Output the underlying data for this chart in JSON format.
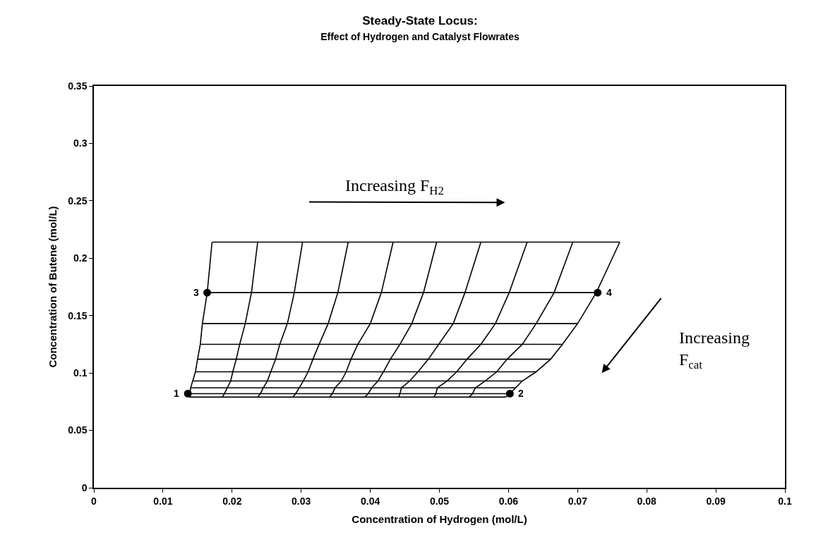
{
  "chart_data": {
    "type": "line",
    "title": "Steady-State Locus:",
    "subtitle": "Effect of Hydrogen and Catalyst Flowrates",
    "xlabel": "Concentration of Hydrogen (mol/L)",
    "ylabel": "Concentration of Butene (mol/L)",
    "xlim": [
      0,
      0.1
    ],
    "xticks": [
      0,
      0.01,
      0.02,
      0.03,
      0.04,
      0.05,
      0.06,
      0.07,
      0.08,
      0.09,
      0.1
    ],
    "ylim": [
      0,
      0.35
    ],
    "yticks": [
      0,
      0.05,
      0.1,
      0.15,
      0.2,
      0.25,
      0.3,
      0.35
    ],
    "grid": false,
    "series": [
      {
        "color": "#000000",
        "x": [
          0.0171,
          0.0237,
          0.0302,
          0.0368,
          0.0433,
          0.0496,
          0.056,
          0.0627,
          0.0693,
          0.0761
        ],
        "values": [
          0.214,
          0.214,
          0.214,
          0.214,
          0.214,
          0.214,
          0.214,
          0.214,
          0.214,
          0.214
        ]
      },
      {
        "color": "#000000",
        "x": [
          0.0164,
          0.0228,
          0.029,
          0.0353,
          0.0416,
          0.0477,
          0.0537,
          0.0601,
          0.0666,
          0.0727
        ],
        "values": [
          0.17,
          0.17,
          0.17,
          0.17,
          0.17,
          0.17,
          0.17,
          0.17,
          0.17,
          0.17
        ]
      },
      {
        "color": "#000000",
        "x": [
          0.0157,
          0.0219,
          0.028,
          0.0339,
          0.04,
          0.046,
          0.052,
          0.0581,
          0.064,
          0.07
        ],
        "values": [
          0.143,
          0.143,
          0.143,
          0.143,
          0.143,
          0.143,
          0.143,
          0.143,
          0.143,
          0.143
        ]
      },
      {
        "color": "#000000",
        "x": [
          0.0154,
          0.0211,
          0.0269,
          0.0326,
          0.0382,
          0.0443,
          0.0499,
          0.056,
          0.062,
          0.0678
        ],
        "values": [
          0.125,
          0.125,
          0.125,
          0.125,
          0.125,
          0.125,
          0.125,
          0.125,
          0.125,
          0.125
        ]
      },
      {
        "color": "#000000",
        "x": [
          0.015,
          0.0206,
          0.0263,
          0.0317,
          0.0372,
          0.0429,
          0.0484,
          0.054,
          0.0598,
          0.0661
        ],
        "values": [
          0.112,
          0.112,
          0.112,
          0.112,
          0.112,
          0.112,
          0.112,
          0.112,
          0.112,
          0.112
        ]
      },
      {
        "color": "#000000",
        "x": [
          0.0147,
          0.0201,
          0.0256,
          0.031,
          0.0365,
          0.0419,
          0.0469,
          0.0525,
          0.0583,
          0.064
        ],
        "values": [
          0.101,
          0.101,
          0.101,
          0.101,
          0.101,
          0.101,
          0.101,
          0.101,
          0.101,
          0.101
        ]
      },
      {
        "color": "#000000",
        "x": [
          0.0143,
          0.0198,
          0.0251,
          0.0303,
          0.0358,
          0.0411,
          0.0457,
          0.0511,
          0.0566,
          0.062
        ],
        "values": [
          0.093,
          0.093,
          0.093,
          0.093,
          0.093,
          0.093,
          0.093,
          0.093,
          0.093,
          0.093
        ]
      },
      {
        "color": "#000000",
        "x": [
          0.014,
          0.0193,
          0.0245,
          0.0297,
          0.0349,
          0.0402,
          0.0445,
          0.0497,
          0.0552,
          0.061
        ],
        "values": [
          0.087,
          0.087,
          0.087,
          0.087,
          0.087,
          0.087,
          0.087,
          0.087,
          0.087,
          0.087
        ]
      },
      {
        "color": "#000000",
        "x": [
          0.0139,
          0.0189,
          0.0241,
          0.0292,
          0.0345,
          0.0397,
          0.0443,
          0.0495,
          0.0548,
          0.0602
        ],
        "values": [
          0.082,
          0.082,
          0.082,
          0.082,
          0.082,
          0.082,
          0.082,
          0.082,
          0.082,
          0.082
        ]
      },
      {
        "color": "#000000",
        "x": [
          0.0138,
          0.0186,
          0.0237,
          0.0288,
          0.0341,
          0.0392,
          0.0441,
          0.0492,
          0.0543,
          0.0596
        ],
        "values": [
          0.079,
          0.079,
          0.079,
          0.079,
          0.079,
          0.079,
          0.079,
          0.079,
          0.079,
          0.079
        ]
      },
      {
        "color": "#000000",
        "x": [
          0.0171,
          0.0164,
          0.0157,
          0.0154,
          0.015,
          0.0147,
          0.0143,
          0.014,
          0.0139,
          0.0138
        ],
        "values": [
          0.214,
          0.17,
          0.143,
          0.125,
          0.112,
          0.101,
          0.093,
          0.087,
          0.082,
          0.079
        ]
      },
      {
        "color": "#000000",
        "x": [
          0.0237,
          0.0228,
          0.0219,
          0.0211,
          0.0206,
          0.0201,
          0.0198,
          0.0193,
          0.0189,
          0.0186
        ],
        "values": [
          0.214,
          0.17,
          0.143,
          0.125,
          0.112,
          0.101,
          0.093,
          0.087,
          0.082,
          0.079
        ]
      },
      {
        "color": "#000000",
        "x": [
          0.0302,
          0.029,
          0.028,
          0.0269,
          0.0263,
          0.0256,
          0.0251,
          0.0245,
          0.0241,
          0.0237
        ],
        "values": [
          0.214,
          0.17,
          0.143,
          0.125,
          0.112,
          0.101,
          0.093,
          0.087,
          0.082,
          0.079
        ]
      },
      {
        "color": "#000000",
        "x": [
          0.0368,
          0.0353,
          0.0339,
          0.0326,
          0.0317,
          0.031,
          0.0303,
          0.0297,
          0.0292,
          0.0288
        ],
        "values": [
          0.214,
          0.17,
          0.143,
          0.125,
          0.112,
          0.101,
          0.093,
          0.087,
          0.082,
          0.079
        ]
      },
      {
        "color": "#000000",
        "x": [
          0.0433,
          0.0416,
          0.04,
          0.0382,
          0.0372,
          0.0365,
          0.0358,
          0.0349,
          0.0345,
          0.0341
        ],
        "values": [
          0.214,
          0.17,
          0.143,
          0.125,
          0.112,
          0.101,
          0.093,
          0.087,
          0.082,
          0.079
        ]
      },
      {
        "color": "#000000",
        "x": [
          0.0496,
          0.0477,
          0.046,
          0.0443,
          0.0429,
          0.0419,
          0.0411,
          0.0402,
          0.0397,
          0.0392
        ],
        "values": [
          0.214,
          0.17,
          0.143,
          0.125,
          0.112,
          0.101,
          0.093,
          0.087,
          0.082,
          0.079
        ]
      },
      {
        "color": "#000000",
        "x": [
          0.056,
          0.0537,
          0.052,
          0.0499,
          0.0484,
          0.0469,
          0.0457,
          0.0445,
          0.0443,
          0.0441
        ],
        "values": [
          0.214,
          0.17,
          0.143,
          0.125,
          0.112,
          0.101,
          0.093,
          0.087,
          0.082,
          0.079
        ]
      },
      {
        "color": "#000000",
        "x": [
          0.0627,
          0.0601,
          0.0581,
          0.056,
          0.054,
          0.0525,
          0.0511,
          0.0497,
          0.0495,
          0.0492
        ],
        "values": [
          0.214,
          0.17,
          0.143,
          0.125,
          0.112,
          0.101,
          0.093,
          0.087,
          0.082,
          0.079
        ]
      },
      {
        "color": "#000000",
        "x": [
          0.0693,
          0.0666,
          0.064,
          0.062,
          0.0598,
          0.0583,
          0.0566,
          0.0552,
          0.0548,
          0.0543
        ],
        "values": [
          0.214,
          0.17,
          0.143,
          0.125,
          0.112,
          0.101,
          0.093,
          0.087,
          0.082,
          0.079
        ]
      },
      {
        "color": "#000000",
        "x": [
          0.0761,
          0.0727,
          0.07,
          0.0678,
          0.0661,
          0.064,
          0.062,
          0.061,
          0.0602,
          0.0596
        ],
        "values": [
          0.214,
          0.17,
          0.143,
          0.125,
          0.112,
          0.101,
          0.093,
          0.087,
          0.082,
          0.079
        ]
      },
      {
        "type": "scatter",
        "color": "#000000",
        "marker": "circle",
        "x": [
          0.0136,
          0.0602,
          0.0164,
          0.0729
        ],
        "values": [
          0.082,
          0.082,
          0.17,
          0.17
        ]
      }
    ],
    "annotations": [
      {
        "text": "1",
        "x": 0.0136,
        "y": 0.082
      },
      {
        "text": "2",
        "x": 0.0602,
        "y": 0.082
      },
      {
        "text": "3",
        "x": 0.0164,
        "y": 0.17
      },
      {
        "text": "4",
        "x": 0.0729,
        "y": 0.17
      },
      "Increasing F$_{H2}$",
      "Increasing F$_{cat}$"
    ]
  }
}
